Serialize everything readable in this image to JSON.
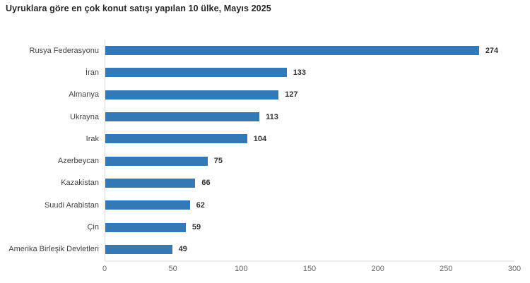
{
  "chart_data": {
    "type": "bar",
    "orientation": "horizontal",
    "title": "Uyruklara göre en çok konut satışı yapılan 10 ülke, Mayıs 2025",
    "categories": [
      "Rusya Federasyonu",
      "İran",
      "Almanya",
      "Ukrayna",
      "Irak",
      "Azerbeycan",
      "Kazakistan",
      "Suudi Arabistan",
      "Çin",
      "Amerika Birleşik Devletleri"
    ],
    "values": [
      274,
      133,
      127,
      113,
      104,
      75,
      66,
      62,
      59,
      49
    ],
    "xlabel": "",
    "ylabel": "",
    "xlim": [
      0,
      300
    ],
    "xticks": [
      0,
      50,
      100,
      150,
      200,
      250,
      300
    ],
    "grid": false,
    "legend": false,
    "bar_color": "#3478b5",
    "axis_line_color": "#dedede",
    "title_color": "#262626",
    "label_color": "#444444",
    "value_label_color": "#333333",
    "tick_label_color": "#666666",
    "background_color": "#ffffff"
  }
}
